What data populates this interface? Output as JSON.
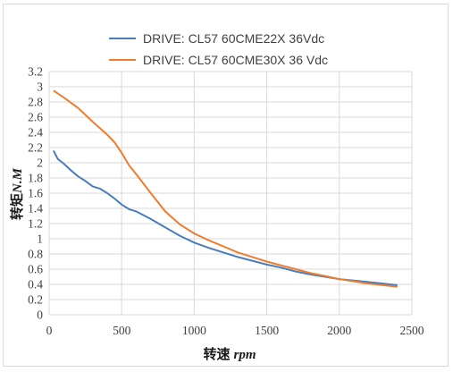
{
  "chart_data": {
    "type": "line",
    "xlabel_cn": "转速",
    "xlabel_unit": "rpm",
    "ylabel_cn": "转矩",
    "ylabel_unit": "N.M",
    "xlim": [
      0,
      2500
    ],
    "ylim": [
      0,
      3.2
    ],
    "x_ticks": [
      "0",
      "500",
      "1000",
      "1500",
      "2000",
      "2500"
    ],
    "y_ticks": [
      "0",
      "0.2",
      "0.4",
      "0.6",
      "0.8",
      "1",
      "1.2",
      "1.4",
      "1.6",
      "1.8",
      "2",
      "2.2",
      "2.4",
      "2.6",
      "2.8",
      "3",
      "3.2"
    ],
    "grid": true,
    "legend_position": "top",
    "series": [
      {
        "name": "DRIVE: CL57 60CME22X 36Vdc",
        "color": "#4a7ebb",
        "x": [
          30,
          60,
          100,
          150,
          200,
          250,
          300,
          350,
          400,
          450,
          500,
          550,
          600,
          700,
          800,
          900,
          1000,
          1100,
          1200,
          1300,
          1400,
          1500,
          1600,
          1700,
          1800,
          1900,
          2000,
          2100,
          2200,
          2300,
          2400
        ],
        "y": [
          2.16,
          2.05,
          1.99,
          1.9,
          1.82,
          1.76,
          1.69,
          1.66,
          1.6,
          1.53,
          1.45,
          1.39,
          1.36,
          1.26,
          1.15,
          1.04,
          0.95,
          0.88,
          0.82,
          0.76,
          0.71,
          0.66,
          0.62,
          0.57,
          0.53,
          0.5,
          0.47,
          0.45,
          0.43,
          0.41,
          0.39
        ]
      },
      {
        "name": "DRIVE: CL57 60CME30X 36 Vdc",
        "color": "#ec7d31",
        "x": [
          30,
          100,
          200,
          300,
          400,
          450,
          500,
          550,
          600,
          700,
          800,
          900,
          1000,
          1100,
          1200,
          1300,
          1400,
          1500,
          1600,
          1700,
          1800,
          1900,
          2000,
          2100,
          2200,
          2300,
          2400
        ],
        "y": [
          2.95,
          2.86,
          2.72,
          2.54,
          2.37,
          2.27,
          2.13,
          1.97,
          1.85,
          1.6,
          1.36,
          1.19,
          1.07,
          0.98,
          0.9,
          0.82,
          0.76,
          0.7,
          0.65,
          0.6,
          0.55,
          0.51,
          0.47,
          0.44,
          0.41,
          0.39,
          0.37
        ]
      }
    ]
  }
}
